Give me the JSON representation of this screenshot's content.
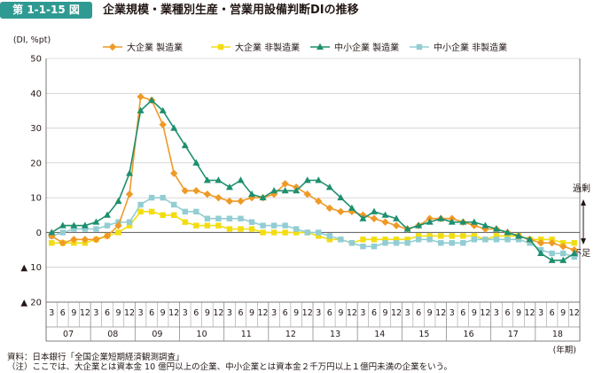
{
  "figure": {
    "number": "第 1-1-15 図",
    "title": "企業規模・業種別生産・営業用設備判断DIの推移"
  },
  "chart_data": {
    "type": "line",
    "yunit": "(DI, %pt)",
    "ylim": [
      -20,
      50
    ],
    "yticks": [
      {
        "v": 50,
        "label": "50"
      },
      {
        "v": 40,
        "label": "40"
      },
      {
        "v": 30,
        "label": "30"
      },
      {
        "v": 20,
        "label": "20"
      },
      {
        "v": 10,
        "label": "10"
      },
      {
        "v": 0,
        "label": "0"
      },
      {
        "v": -10,
        "label": "▲ 10"
      },
      {
        "v": -20,
        "label": "▲ 20"
      }
    ],
    "months": [
      "3",
      "6",
      "9",
      "12",
      "3",
      "6",
      "9",
      "12",
      "3",
      "6",
      "9",
      "12",
      "3",
      "6",
      "9",
      "12",
      "3",
      "6",
      "9",
      "12",
      "3",
      "6",
      "9",
      "12",
      "3",
      "6",
      "9",
      "12",
      "3",
      "6",
      "9",
      "12",
      "3",
      "6",
      "9",
      "12",
      "3",
      "6",
      "9",
      "12",
      "3",
      "6",
      "9",
      "12",
      "3",
      "6",
      "9",
      "12"
    ],
    "years": [
      "07",
      "08",
      "09",
      "10",
      "11",
      "12",
      "13",
      "14",
      "15",
      "16",
      "17",
      "18"
    ],
    "xunit": "(年期)",
    "right_labels": {
      "excess": "過剰",
      "shortage": "不足"
    },
    "grid": true,
    "legend_position": "top",
    "series": [
      {
        "name": "大企業 製造業",
        "marker": "diamond",
        "color": "#ef9a26",
        "values": [
          -1,
          -3,
          -2,
          -2,
          -2,
          -1,
          2,
          11,
          39,
          38,
          31,
          17,
          12,
          12,
          11,
          10,
          9,
          9,
          10,
          10,
          11,
          14,
          13,
          11,
          9,
          7,
          6,
          6,
          5,
          4,
          3,
          2,
          1,
          2,
          4,
          4,
          4,
          3,
          2,
          1,
          1,
          0,
          -1,
          -2,
          -3,
          -3,
          -4,
          -5
        ]
      },
      {
        "name": "大企業 非製造業",
        "marker": "square",
        "color": "#f2dd12",
        "values": [
          -3,
          -3,
          -3,
          -3,
          -2,
          -1,
          0,
          2,
          6,
          6,
          5,
          5,
          3,
          2,
          2,
          2,
          1,
          1,
          1,
          0,
          0,
          0,
          0,
          0,
          -1,
          -2,
          -2,
          -3,
          -2,
          -2,
          -2,
          -2,
          -2,
          -1,
          -1,
          -1,
          -1,
          -1,
          -1,
          -2,
          -1,
          -1,
          -1,
          -2,
          -2,
          -2,
          -3,
          -3
        ]
      },
      {
        "name": "中小企業 製造業",
        "marker": "triangle",
        "color": "#1e8f6e",
        "values": [
          0,
          2,
          2,
          2,
          3,
          5,
          9,
          17,
          35,
          38,
          35,
          30,
          25,
          20,
          15,
          15,
          13,
          15,
          11,
          10,
          12,
          12,
          12,
          15,
          15,
          13,
          10,
          7,
          4,
          6,
          5,
          4,
          1,
          2,
          3,
          4,
          3,
          3,
          3,
          2,
          1,
          0,
          -1,
          -2,
          -6,
          -8,
          -8,
          -6
        ]
      },
      {
        "name": "中小企業 非製造業",
        "marker": "square",
        "color": "#92cdd3",
        "values": [
          -1,
          0,
          1,
          1,
          1,
          2,
          3,
          3,
          8,
          10,
          10,
          8,
          6,
          6,
          4,
          4,
          4,
          4,
          3,
          2,
          2,
          2,
          1,
          0,
          0,
          -1,
          -2,
          -3,
          -4,
          -4,
          -3,
          -3,
          -3,
          -2,
          -2,
          -3,
          -3,
          -3,
          -2,
          -2,
          -2,
          -2,
          -2,
          -3,
          -5,
          -6,
          -6,
          -7
        ]
      }
    ]
  },
  "source_note": "資料：日本銀行「全国企業短期経済観測調査」",
  "footnote": "（注）ここでは、大企業とは資本金 10 億円以上の企業、中小企業とは資本金２千万円以上１億円未満の企業をいう。"
}
